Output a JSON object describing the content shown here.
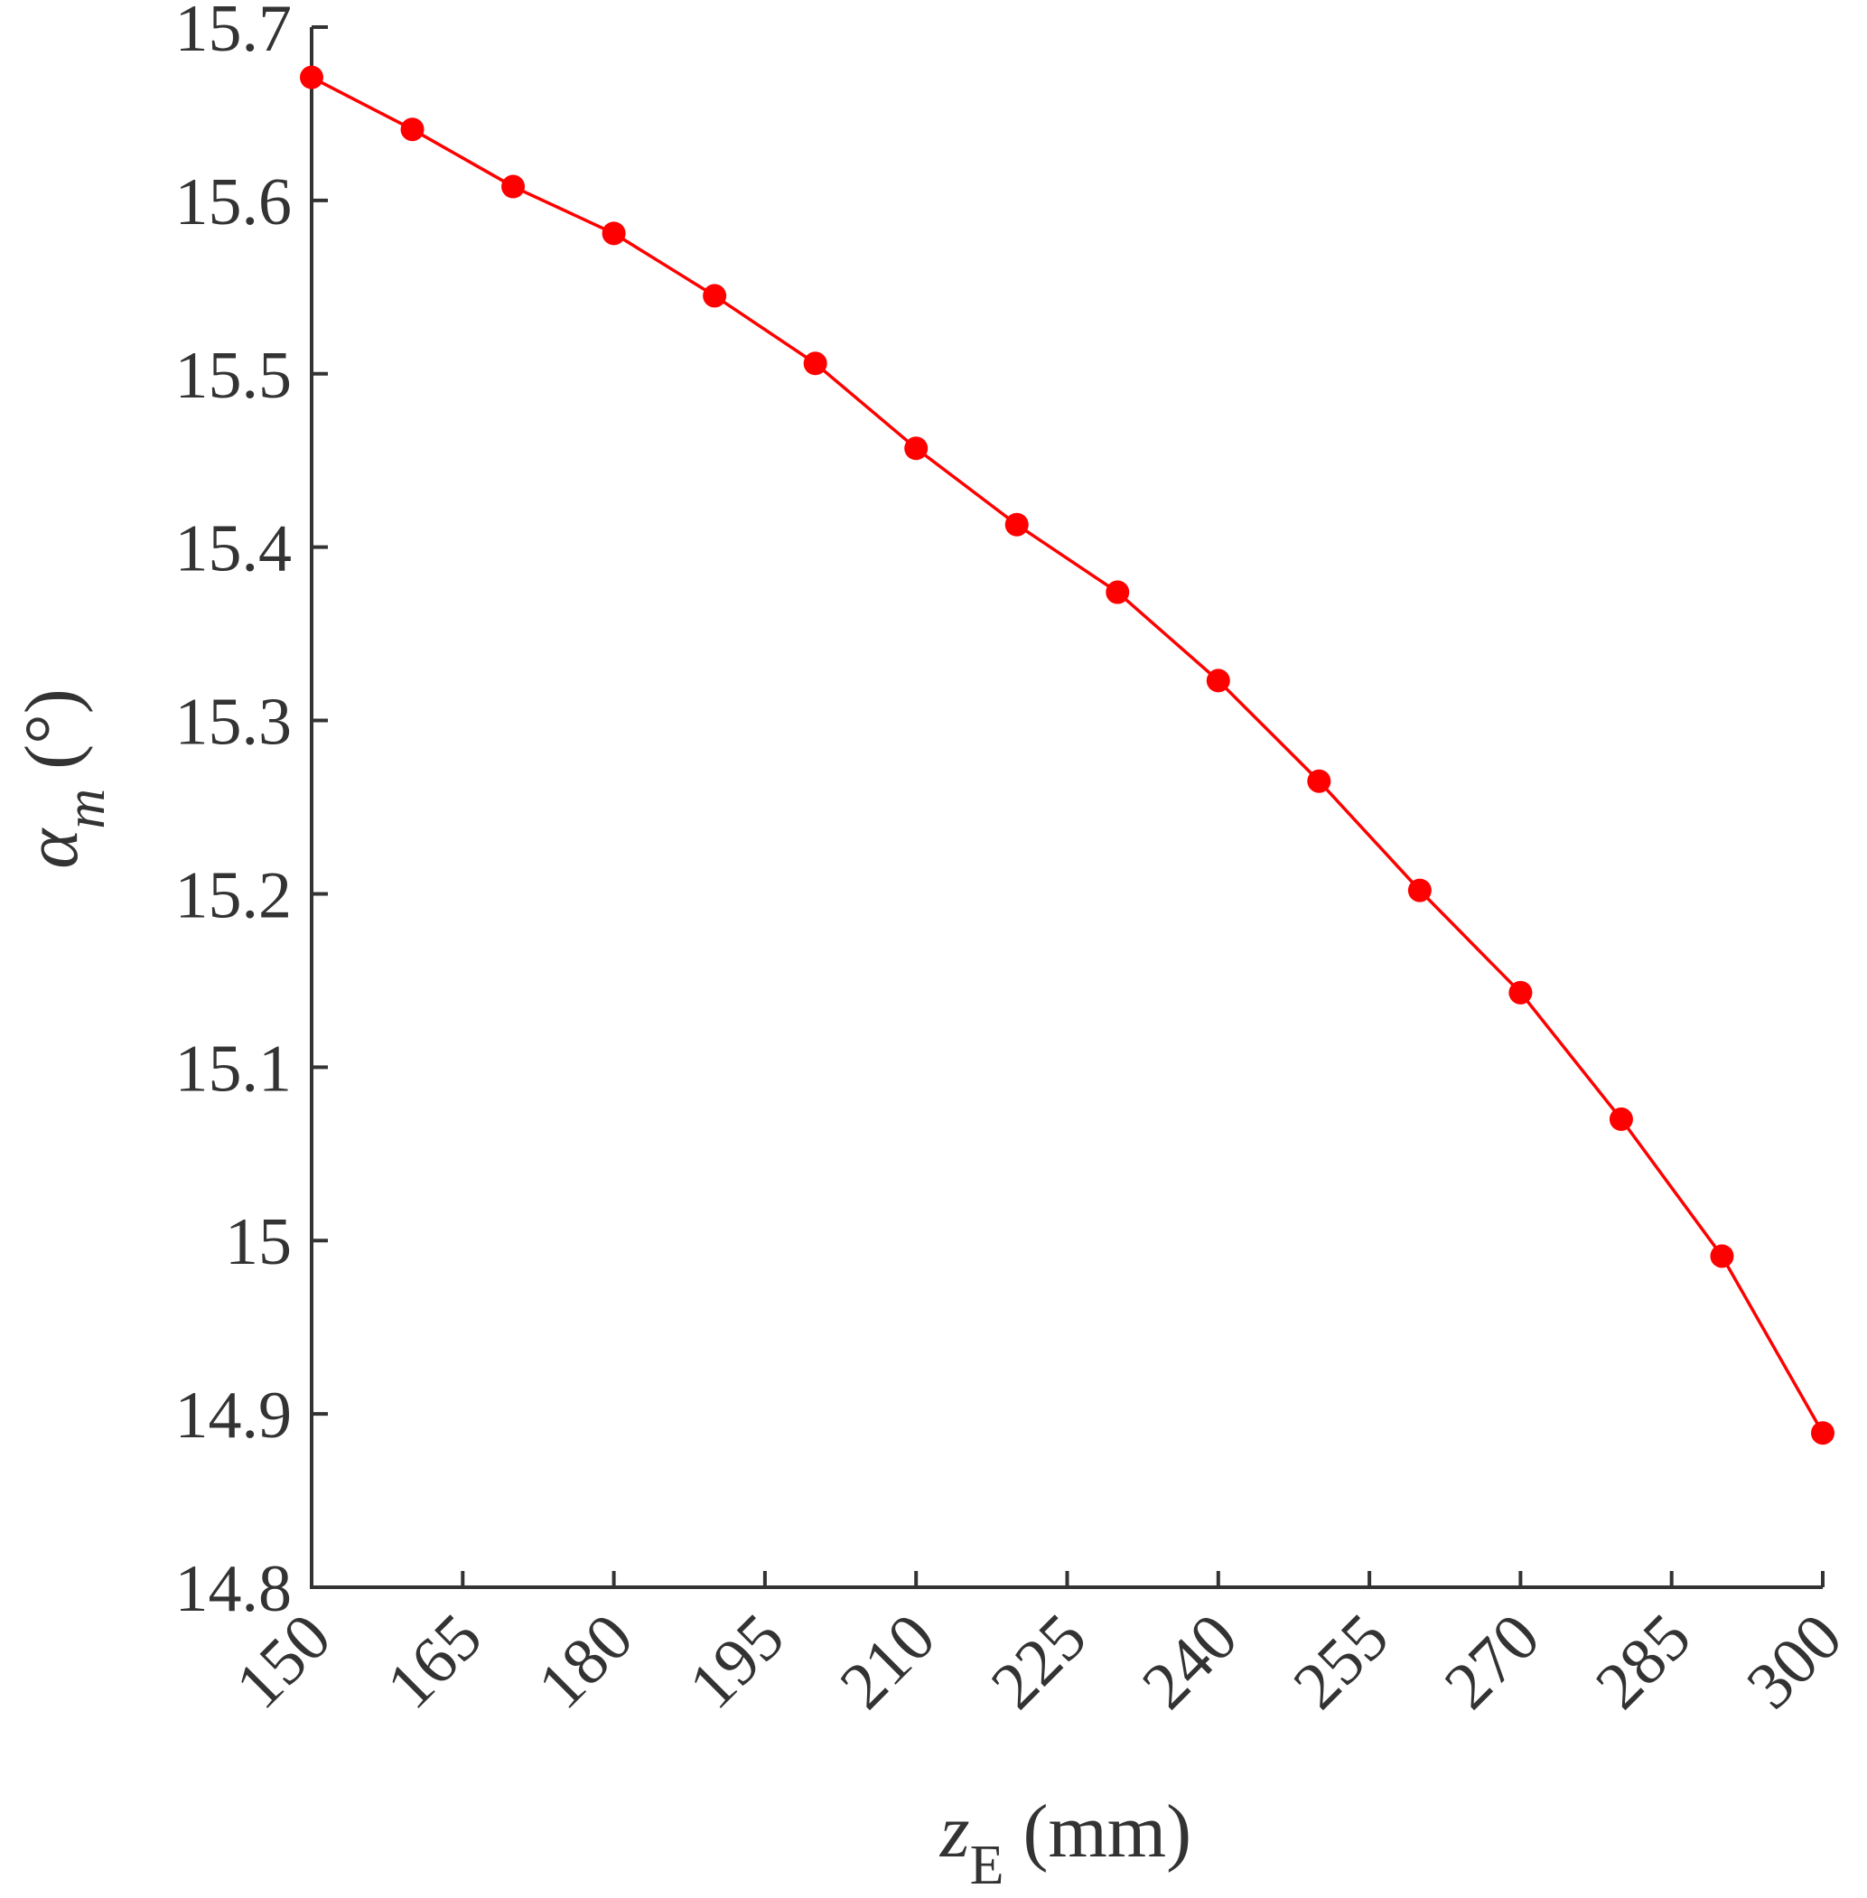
{
  "chart_data": {
    "type": "line",
    "title": "",
    "xlabel": {
      "main": "z",
      "sub": "E",
      "unit": " (mm)"
    },
    "ylabel": {
      "main": "α",
      "sub": "m",
      "unit": " (°)"
    },
    "xlim": [
      150,
      300
    ],
    "ylim": [
      14.8,
      15.7
    ],
    "xticks": [
      150,
      165,
      180,
      195,
      210,
      225,
      240,
      255,
      270,
      285,
      300
    ],
    "yticks": [
      14.8,
      14.9,
      15.0,
      15.1,
      15.2,
      15.3,
      15.4,
      15.5,
      15.6,
      15.7
    ],
    "ytick_labels": [
      "14.8",
      "14.9",
      "15",
      "15.1",
      "15.2",
      "15.3",
      "15.4",
      "15.5",
      "15.6",
      "15.7"
    ],
    "grid": false,
    "series": [
      {
        "color": "#ff0000",
        "marker": "circle",
        "x": [
          150,
          160,
          170,
          180,
          190,
          200,
          210,
          220,
          230,
          240,
          250,
          260,
          270,
          280,
          290,
          300
        ],
        "y": [
          15.671,
          15.641,
          15.608,
          15.581,
          15.545,
          15.506,
          15.457,
          15.413,
          15.374,
          15.323,
          15.265,
          15.202,
          15.143,
          15.07,
          14.991,
          14.889
        ]
      }
    ],
    "axis_color": "#333333"
  }
}
